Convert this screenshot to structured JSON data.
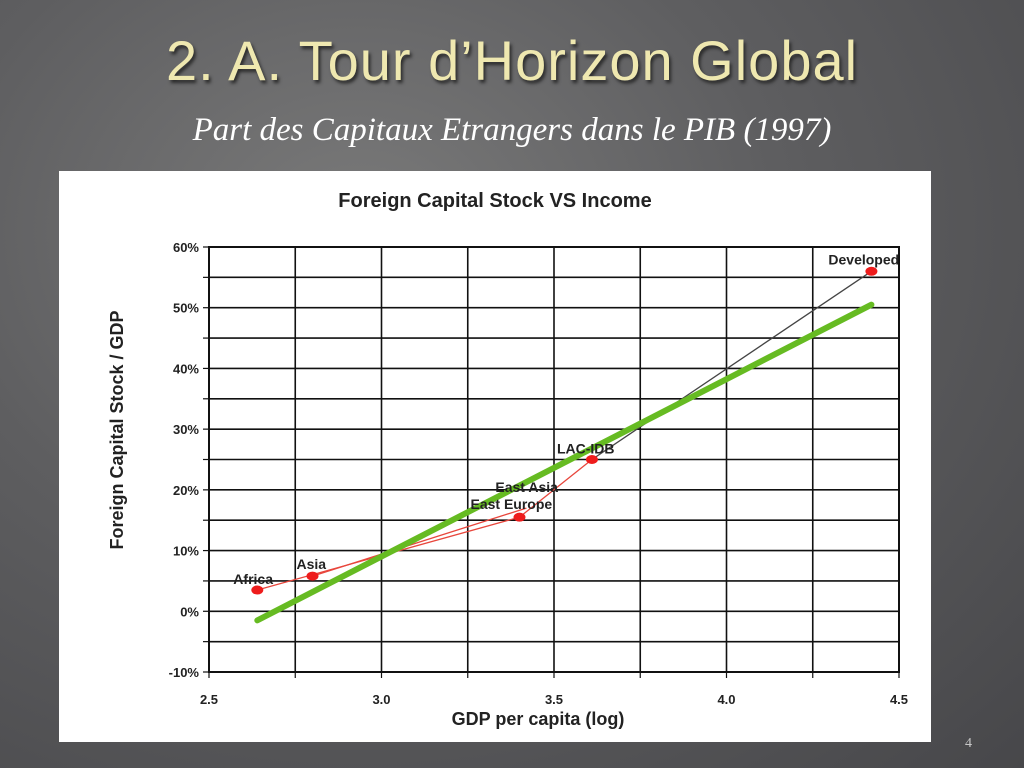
{
  "slide": {
    "title": "2. A. Tour d’Horizon Global",
    "subtitle": "Part des Capitaux Etrangers dans le PIB (1997)",
    "page_number": "4"
  },
  "chart_data": {
    "type": "scatter",
    "title": "Foreign Capital Stock VS Income",
    "xlabel": "GDP per capita (log)",
    "ylabel": "Foreign Capital Stock / GDP",
    "xlim": [
      2.5,
      4.5
    ],
    "ylim": [
      -10,
      60
    ],
    "x_ticks": [
      2.5,
      3.0,
      3.5,
      4.0,
      4.5
    ],
    "x_tick_labels": [
      "2.5",
      "3.0",
      "3.5",
      "4.0",
      "4.5"
    ],
    "y_ticks": [
      -10,
      0,
      10,
      20,
      30,
      40,
      50,
      60
    ],
    "y_tick_labels": [
      "-10%",
      "0%",
      "10%",
      "20%",
      "30%",
      "40%",
      "50%",
      "60%"
    ],
    "grid": true,
    "points": [
      {
        "label": "Africa",
        "x": 2.64,
        "y": 3.5
      },
      {
        "label": "Asia",
        "x": 2.8,
        "y": 5.8
      },
      {
        "label": "East Europe",
        "x": 3.4,
        "y": 15.5
      },
      {
        "label": "East Asia",
        "x": 3.42,
        "y": 17.0
      },
      {
        "label": "LAC-IDB",
        "x": 3.61,
        "y": 25.0
      },
      {
        "label": "Developed",
        "x": 4.42,
        "y": 56.0
      }
    ],
    "connections": [
      {
        "from": "Africa",
        "to": "East Europe",
        "color": "#e8463c"
      },
      {
        "from": "Asia",
        "to": "East Asia",
        "color": "#e8463c"
      },
      {
        "from": "East Europe",
        "to": "LAC-IDB",
        "color": "#e8463c"
      },
      {
        "from": "LAC-IDB",
        "to": "Developed",
        "color": "#444444"
      }
    ],
    "trend_line": {
      "x": [
        2.64,
        4.42
      ],
      "y": [
        -1.5,
        50.5
      ],
      "color": "#66bb22"
    },
    "point_color": "#ee1c1c"
  }
}
